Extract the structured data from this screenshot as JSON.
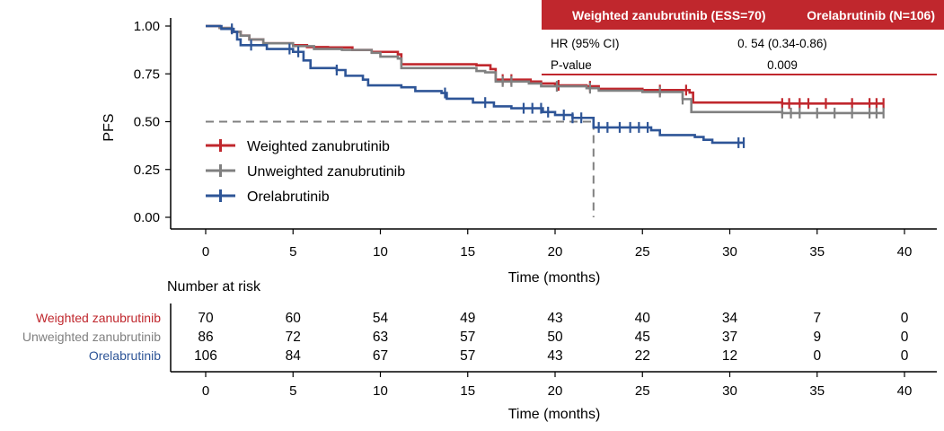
{
  "colors": {
    "weighted": "#c0272d",
    "unweighted": "#808080",
    "orelabrutinib": "#2e5597",
    "header_bg": "#c0272d",
    "header_text": "#ffffff",
    "median_line": "#808080"
  },
  "chart_data": {
    "type": "line",
    "subtype": "kaplan-meier",
    "ylabel": "PFS",
    "xlabel": "Time (months)",
    "xlim": [
      0,
      40
    ],
    "ylim": [
      0,
      1
    ],
    "xticks": [
      0,
      5,
      10,
      15,
      20,
      25,
      30,
      35,
      40
    ],
    "yticks": [
      "0.00",
      "0.25",
      "0.50",
      "0.75",
      "1.00"
    ],
    "ytick_values": [
      0,
      0.25,
      0.5,
      0.75,
      1.0
    ],
    "legend_position": "left-center",
    "median_reference": {
      "y": 0.5,
      "x_end": 22.2
    },
    "series": [
      {
        "name": "Weighted zanubrutinib",
        "color_key": "weighted",
        "steps": [
          [
            0,
            1.0
          ],
          [
            0.8,
            0.99
          ],
          [
            1.5,
            0.97
          ],
          [
            2.0,
            0.95
          ],
          [
            2.5,
            0.93
          ],
          [
            3.3,
            0.91
          ],
          [
            5.0,
            0.9
          ],
          [
            5.8,
            0.89
          ],
          [
            7.0,
            0.888
          ],
          [
            8.4,
            0.875
          ],
          [
            9.5,
            0.865
          ],
          [
            11.0,
            0.852
          ],
          [
            11.2,
            0.8
          ],
          [
            15.5,
            0.795
          ],
          [
            16.3,
            0.775
          ],
          [
            16.6,
            0.72
          ],
          [
            18.6,
            0.71
          ],
          [
            19.2,
            0.7
          ],
          [
            20.0,
            0.69
          ],
          [
            21.8,
            0.685
          ],
          [
            22.5,
            0.672
          ],
          [
            25.0,
            0.665
          ],
          [
            27.7,
            0.652
          ],
          [
            27.9,
            0.6
          ],
          [
            33.0,
            0.595
          ],
          [
            38.8,
            0.595
          ]
        ],
        "censor_x": [
          17.0,
          17.5,
          20.2,
          22.0,
          26.0,
          27.5,
          33.0,
          33.4,
          34.0,
          34.5,
          35.5,
          37.0,
          38.0,
          38.4,
          38.8
        ]
      },
      {
        "name": "Unweighted zanubrutinib",
        "color_key": "unweighted",
        "steps": [
          [
            0,
            1.0
          ],
          [
            0.8,
            0.99
          ],
          [
            1.5,
            0.97
          ],
          [
            2.0,
            0.95
          ],
          [
            2.5,
            0.93
          ],
          [
            3.3,
            0.91
          ],
          [
            5.0,
            0.895
          ],
          [
            6.2,
            0.88
          ],
          [
            7.8,
            0.875
          ],
          [
            9.5,
            0.86
          ],
          [
            10.0,
            0.84
          ],
          [
            11.0,
            0.83
          ],
          [
            11.2,
            0.78
          ],
          [
            15.5,
            0.765
          ],
          [
            16.0,
            0.758
          ],
          [
            16.6,
            0.71
          ],
          [
            18.5,
            0.7
          ],
          [
            19.2,
            0.685
          ],
          [
            21.8,
            0.675
          ],
          [
            22.5,
            0.662
          ],
          [
            25.0,
            0.655
          ],
          [
            27.3,
            0.618
          ],
          [
            27.8,
            0.55
          ],
          [
            33.0,
            0.545
          ],
          [
            38.8,
            0.545
          ]
        ],
        "censor_x": [
          17.0,
          17.5,
          20.1,
          22.0,
          26.0,
          27.3,
          33.0,
          33.5,
          34.0,
          35.0,
          36.0,
          37.0,
          38.0,
          38.4,
          38.8
        ]
      },
      {
        "name": "Orelabrutinib",
        "color_key": "orelabrutinib",
        "steps": [
          [
            0,
            1.0
          ],
          [
            0.9,
            0.985
          ],
          [
            1.6,
            0.97
          ],
          [
            1.8,
            0.93
          ],
          [
            2.0,
            0.9
          ],
          [
            3.5,
            0.88
          ],
          [
            5.0,
            0.865
          ],
          [
            5.6,
            0.82
          ],
          [
            6.0,
            0.78
          ],
          [
            7.5,
            0.77
          ],
          [
            8.0,
            0.74
          ],
          [
            9.0,
            0.72
          ],
          [
            9.3,
            0.69
          ],
          [
            11.2,
            0.68
          ],
          [
            12.0,
            0.66
          ],
          [
            13.5,
            0.65
          ],
          [
            13.8,
            0.62
          ],
          [
            15.3,
            0.6
          ],
          [
            16.5,
            0.58
          ],
          [
            17.5,
            0.57
          ],
          [
            19.3,
            0.55
          ],
          [
            20.0,
            0.535
          ],
          [
            21.0,
            0.52
          ],
          [
            22.0,
            0.52
          ],
          [
            22.2,
            0.47
          ],
          [
            25.5,
            0.455
          ],
          [
            26.0,
            0.43
          ],
          [
            28.0,
            0.42
          ],
          [
            28.5,
            0.405
          ],
          [
            29.0,
            0.39
          ],
          [
            30.8,
            0.39
          ]
        ],
        "censor_x": [
          1.5,
          2.6,
          4.8,
          5.3,
          7.5,
          13.7,
          16.0,
          18.2,
          18.7,
          19.2,
          19.6,
          20.5,
          21.0,
          21.5,
          22.5,
          23.0,
          23.7,
          24.3,
          24.8,
          25.3,
          30.5,
          30.8
        ]
      }
    ],
    "stats_table": {
      "header_left": "Weighted zanubrutinib (ESS=70)",
      "header_right": "Orelabrutinib (N=106)",
      "rows": [
        {
          "label": "HR (95% CI)",
          "value": "0. 54 (0.34-0.86)"
        },
        {
          "label": "P-value",
          "value": "0.009"
        }
      ]
    },
    "risk_table": {
      "title": "Number at risk",
      "xlabel": "Time (months)",
      "time_points": [
        0,
        5,
        10,
        15,
        20,
        25,
        30,
        35,
        40
      ],
      "rows": [
        {
          "name": "Weighted zanubrutinib",
          "color_key": "weighted",
          "values": [
            70,
            60,
            54,
            49,
            43,
            40,
            34,
            7,
            0
          ]
        },
        {
          "name": "Unweighted zanubrutinib",
          "color_key": "unweighted",
          "values": [
            86,
            72,
            63,
            57,
            50,
            45,
            37,
            9,
            0
          ]
        },
        {
          "name": "Orelabrutinib",
          "color_key": "orelabrutinib",
          "values": [
            106,
            84,
            67,
            57,
            43,
            22,
            12,
            0,
            0
          ]
        }
      ]
    }
  }
}
